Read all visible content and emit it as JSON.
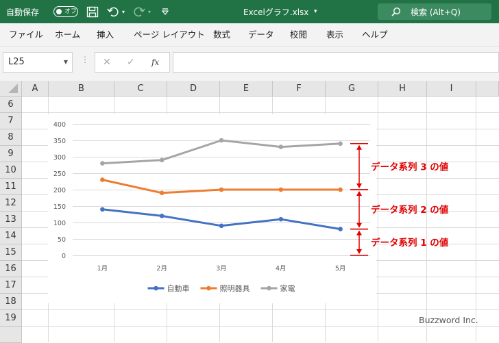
{
  "title_bar": {
    "autosave_label": "自動保存",
    "autosave_state": "オフ",
    "file_title": "Excelグラフ.xlsx",
    "search_label": "検索 (Alt+Q)",
    "colors": {
      "background": "#217346",
      "search_bg": "#3c8a60"
    }
  },
  "ribbon": {
    "tabs": [
      "ファイル",
      "ホーム",
      "挿入",
      "ページ レイアウト",
      "数式",
      "データ",
      "校閲",
      "表示",
      "ヘルプ"
    ]
  },
  "formula_bar": {
    "name_box": "L25",
    "fx_label": "fx",
    "formula": ""
  },
  "sheet": {
    "columns": [
      "A",
      "B",
      "C",
      "D",
      "E",
      "F",
      "G",
      "H",
      "I"
    ],
    "rows": [
      "6",
      "7",
      "8",
      "9",
      "10",
      "11",
      "12",
      "13",
      "14",
      "15",
      "16",
      "17",
      "18",
      "19"
    ]
  },
  "chart_data": {
    "type": "line",
    "categories": [
      "1月",
      "2月",
      "3月",
      "4月",
      "5月"
    ],
    "ylim": [
      0,
      400
    ],
    "yticks": [
      "0",
      "50",
      "100",
      "150",
      "200",
      "250",
      "300",
      "350",
      "400"
    ],
    "grid": true,
    "legend_position": "bottom",
    "series": [
      {
        "name": "自動車",
        "values": [
          140,
          120,
          90,
          110,
          80
        ],
        "color": "#4472c4"
      },
      {
        "name": "照明器具",
        "values": [
          230,
          190,
          200,
          200,
          200
        ],
        "color": "#ed7d31"
      },
      {
        "name": "家電",
        "values": [
          280,
          290,
          350,
          330,
          340
        ],
        "color": "#a5a5a5"
      }
    ]
  },
  "annotations": {
    "color": "#e00000",
    "items": [
      {
        "label": "データ系列 3 の値",
        "from": 200,
        "to": 340
      },
      {
        "label": "データ系列 2 の値",
        "from": 80,
        "to": 200
      },
      {
        "label": "データ系列 1 の値",
        "from": 0,
        "to": 80
      }
    ]
  },
  "watermark": "Buzzword Inc."
}
